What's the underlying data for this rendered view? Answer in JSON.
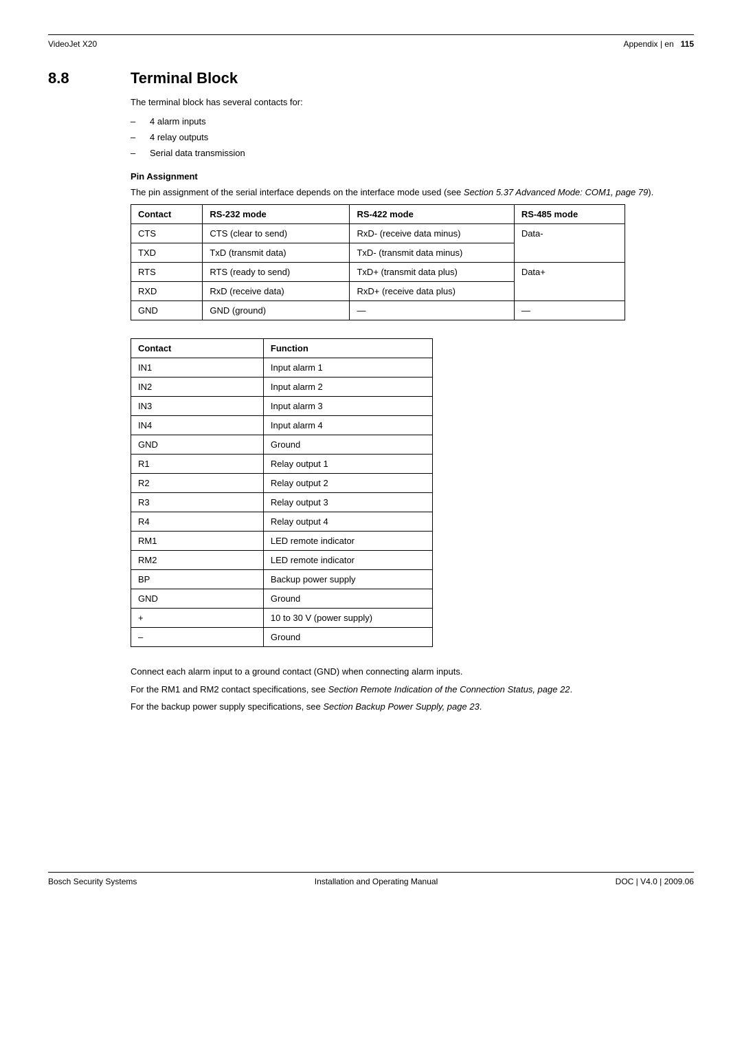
{
  "header": {
    "left": "VideoJet X20",
    "right_prefix": "Appendix | en",
    "page_number": "115"
  },
  "section": {
    "number": "8.8",
    "title": "Terminal Block"
  },
  "intro": "The terminal block has several contacts for:",
  "bullets": [
    "4 alarm inputs",
    "4 relay outputs",
    "Serial data transmission"
  ],
  "pin_heading": "Pin Assignment",
  "pin_text_1": "The pin assignment of the serial interface depends on the interface mode used (see ",
  "pin_text_2": "Section 5.37 Advanced Mode: COM1, page 79",
  "pin_text_3": ").",
  "table1": {
    "headers": [
      "Contact",
      "RS-232 mode",
      "RS-422 mode",
      "RS-485 mode"
    ],
    "rows": [
      [
        "CTS",
        "CTS (clear to send)",
        "RxD- (receive data minus)",
        "Data-"
      ],
      [
        "TXD",
        "TxD (transmit data)",
        "TxD- (transmit data minus)",
        ""
      ],
      [
        "RTS",
        "RTS (ready to send)",
        "TxD+ (transmit data plus)",
        "Data+"
      ],
      [
        "RXD",
        "RxD (receive data)",
        "RxD+ (receive data plus)",
        ""
      ],
      [
        "GND",
        "GND (ground)",
        "—",
        "—"
      ]
    ],
    "col4_rowspan_rows": [
      0,
      2
    ]
  },
  "table2": {
    "headers": [
      "Contact",
      "Function"
    ],
    "rows": [
      [
        "IN1",
        "Input alarm 1"
      ],
      [
        "IN2",
        "Input alarm 2"
      ],
      [
        "IN3",
        "Input alarm 3"
      ],
      [
        "IN4",
        "Input alarm 4"
      ],
      [
        "GND",
        "Ground"
      ],
      [
        "R1",
        "Relay output 1"
      ],
      [
        "R2",
        "Relay output 2"
      ],
      [
        "R3",
        "Relay output 3"
      ],
      [
        "R4",
        "Relay output 4"
      ],
      [
        "RM1",
        "LED remote indicator"
      ],
      [
        "RM2",
        "LED remote indicator"
      ],
      [
        "BP",
        "Backup power supply"
      ],
      [
        "GND",
        "Ground"
      ],
      [
        "+",
        "10 to 30 V (power supply)"
      ],
      [
        "–",
        "Ground"
      ]
    ]
  },
  "closing": {
    "p1": "Connect each alarm input to a ground contact (GND) when connecting alarm inputs.",
    "p2a": "For the RM1 and RM2 contact specifications, see ",
    "p2b": "Section  Remote Indication of the Connection Status, page 22",
    "p2c": ".",
    "p3a": "For the backup power supply specifications, see ",
    "p3b": "Section  Backup Power Supply, page 23",
    "p3c": "."
  },
  "footer": {
    "left": "Bosch Security Systems",
    "center": "Installation and Operating Manual",
    "right": "DOC | V4.0 | 2009.06"
  }
}
